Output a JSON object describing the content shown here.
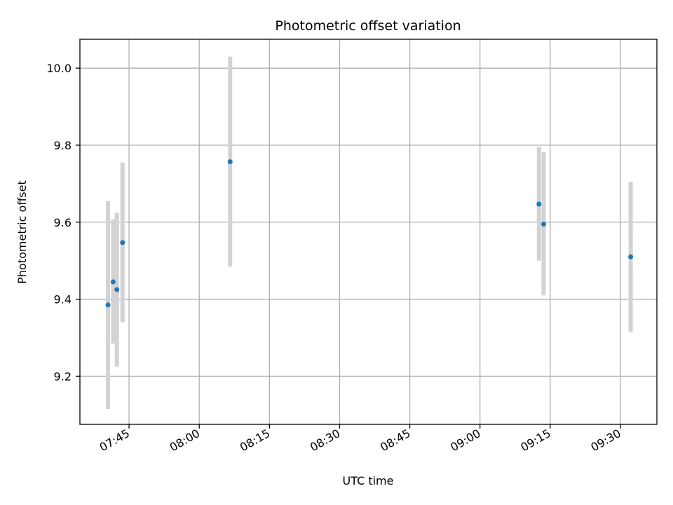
{
  "chart_data": {
    "type": "scatter",
    "title": "Photometric offset variation",
    "xlabel": "UTC time",
    "ylabel": "Photometric offset",
    "x_ticks": [
      "07:45",
      "08:00",
      "08:15",
      "08:30",
      "08:45",
      "09:00",
      "09:15",
      "09:30"
    ],
    "y_ticks": [
      "9.2",
      "9.4",
      "9.6",
      "9.8",
      "10.0"
    ],
    "xlim": [
      "07:34.5",
      "09:37.8"
    ],
    "ylim": [
      9.075,
      10.075
    ],
    "grid": true,
    "series": [
      {
        "x": [
          "07:40.5",
          "07:41.6",
          "07:42.4",
          "07:43.6",
          "08:06.6",
          "09:12.6",
          "09:13.6",
          "09:32.2"
        ],
        "y": [
          9.385,
          9.445,
          9.425,
          9.547,
          9.757,
          9.647,
          9.595,
          9.51
        ],
        "y_low": [
          9.115,
          9.285,
          9.225,
          9.34,
          9.485,
          9.5,
          9.41,
          9.315
        ],
        "y_high": [
          9.655,
          9.607,
          9.625,
          9.755,
          10.03,
          9.795,
          9.782,
          9.705
        ]
      }
    ],
    "colors": {
      "marker": "#1f77b4",
      "errorbar": "#d3d3d3",
      "grid": "#b0b0b0",
      "axis": "#000000"
    }
  }
}
